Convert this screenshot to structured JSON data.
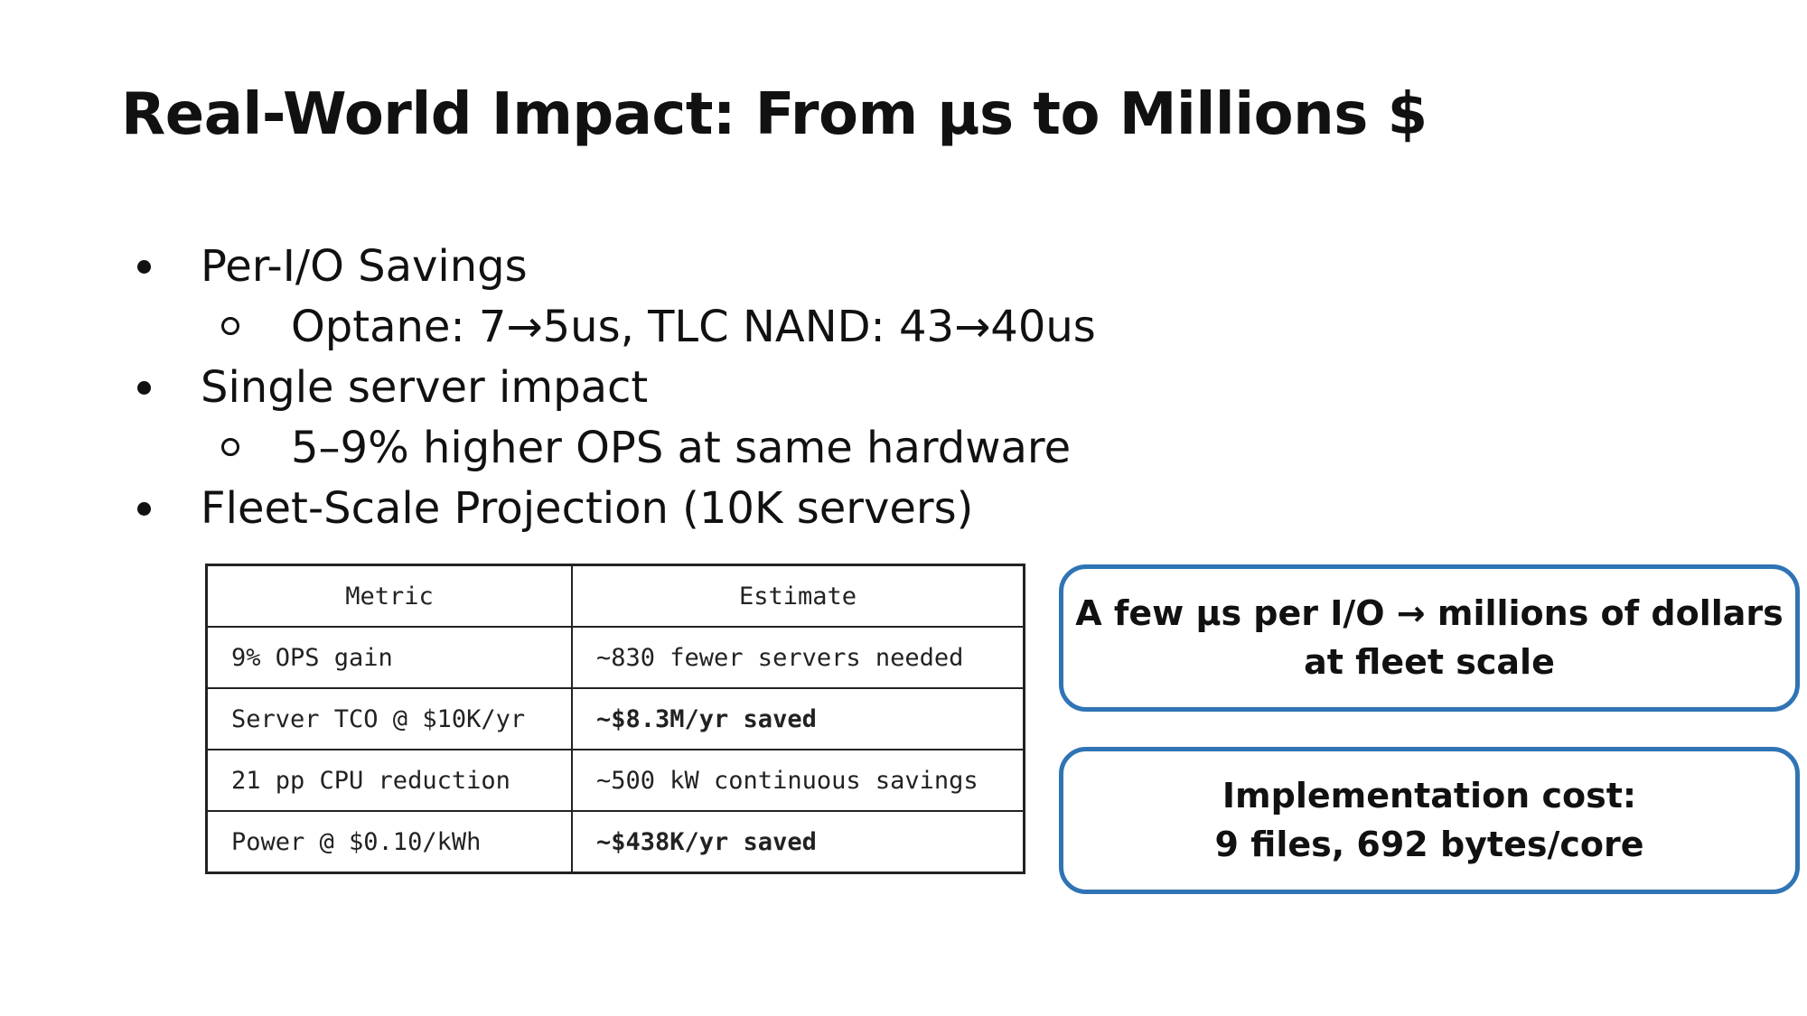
{
  "title": "Real-World Impact: From µs to Millions $",
  "bullets": [
    {
      "level": 1,
      "text": "Per-I/O Savings"
    },
    {
      "level": 2,
      "text": "Optane: 7→5us, TLC NAND: 43→40us"
    },
    {
      "level": 1,
      "text": "Single server impact"
    },
    {
      "level": 2,
      "text": "5–9% higher OPS at same hardware"
    },
    {
      "level": 1,
      "text": "Fleet-Scale Projection (10K servers)"
    }
  ],
  "table": {
    "headers": [
      "Metric",
      "Estimate"
    ],
    "rows": [
      {
        "metric": "9% OPS gain",
        "estimate": "~830 fewer servers needed",
        "estimate_bold": false
      },
      {
        "metric": "Server TCO @ $10K/yr",
        "estimate": "~$8.3M/yr saved",
        "estimate_bold": true
      },
      {
        "metric": "21 pp CPU reduction",
        "estimate": "~500 kW continuous savings",
        "estimate_bold": false
      },
      {
        "metric": "Power @ $0.10/kWh",
        "estimate": "~$438K/yr saved",
        "estimate_bold": true
      }
    ]
  },
  "callouts": [
    {
      "line1": "A few µs per I/O → millions of dollars",
      "line2": "at fleet scale"
    },
    {
      "line1": "Implementation cost:",
      "line2": "9 files, 692 bytes/core"
    }
  ],
  "colors": {
    "callout_border": "#2f74b5",
    "text": "#111111",
    "table_border": "#222222"
  }
}
